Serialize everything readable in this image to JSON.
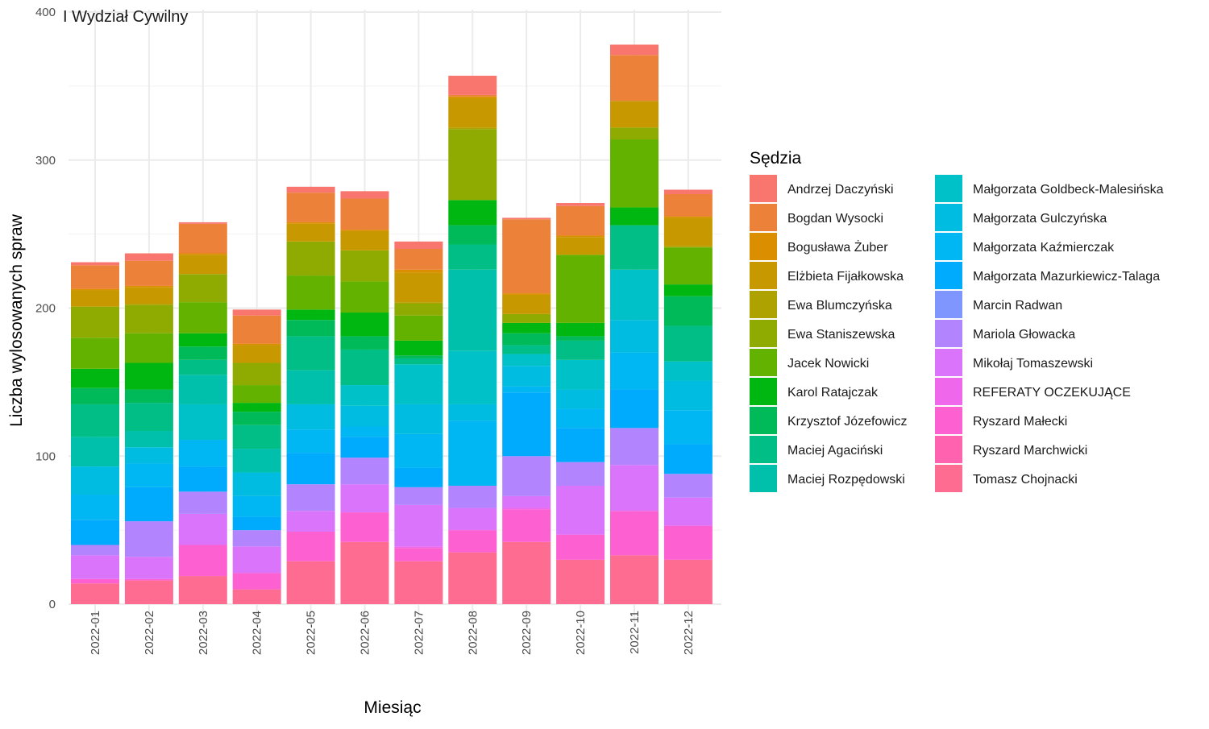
{
  "chart_data": {
    "type": "bar",
    "stacked": true,
    "title": "I Wydział Cywilny",
    "xlabel": "Miesiąc",
    "ylabel": "Liczba wylosowanych spraw",
    "ylim": [
      0,
      400
    ],
    "y_ticks": [
      0,
      100,
      200,
      300,
      400
    ],
    "grid": true,
    "legend_title": "Sędzia",
    "legend_position": "right",
    "categories": [
      "2022-01",
      "2022-02",
      "2022-03",
      "2022-04",
      "2022-05",
      "2022-06",
      "2022-07",
      "2022-08",
      "2022-09",
      "2022-10",
      "2022-11",
      "2022-12"
    ],
    "series": [
      {
        "name": "Andrzej Daczyński",
        "color": "#F8766D",
        "values": [
          2,
          5,
          1,
          4,
          4,
          5,
          5,
          13,
          1,
          2,
          7,
          3
        ]
      },
      {
        "name": "Bogdan Wysocki",
        "color": "#EC8239",
        "values": [
          16,
          17,
          20,
          19,
          20,
          21,
          14,
          1,
          50,
          20,
          31,
          15
        ]
      },
      {
        "name": "Bogusława Żuber",
        "color": "#DB8E00",
        "values": [
          1,
          1,
          1,
          1,
          1,
          1,
          2,
          1,
          1,
          1,
          0,
          1
        ]
      },
      {
        "name": "Elżbieta Fijałkowska",
        "color": "#C79800",
        "values": [
          11,
          11,
          13,
          12,
          12,
          13,
          20,
          20,
          13,
          12,
          18,
          19
        ]
      },
      {
        "name": "Ewa Blumczyńska",
        "color": "#AEA200",
        "values": [
          0,
          1,
          0,
          0,
          0,
          0,
          1,
          1,
          0,
          0,
          0,
          1
        ]
      },
      {
        "name": "Ewa Staniszewska",
        "color": "#8FAA00",
        "values": [
          21,
          19,
          19,
          15,
          23,
          21,
          8,
          48,
          6,
          0,
          8,
          0
        ]
      },
      {
        "name": "Jacek Nowicki",
        "color": "#64B200",
        "values": [
          21,
          20,
          21,
          12,
          23,
          21,
          17,
          0,
          0,
          46,
          46,
          25
        ]
      },
      {
        "name": "Karol Ratajczak",
        "color": "#00B712",
        "values": [
          13,
          18,
          9,
          6,
          7,
          16,
          10,
          17,
          7,
          9,
          12,
          8
        ]
      },
      {
        "name": "Krzysztof Józefowicz",
        "color": "#00BA5A",
        "values": [
          11,
          9,
          9,
          9,
          11,
          9,
          2,
          13,
          8,
          3,
          0,
          20
        ]
      },
      {
        "name": "Maciej Agaciński",
        "color": "#00BE86",
        "values": [
          22,
          19,
          10,
          16,
          23,
          24,
          4,
          17,
          6,
          13,
          30,
          24
        ]
      },
      {
        "name": "Maciej Rozpędowski",
        "color": "#00C0AB",
        "values": [
          20,
          11,
          20,
          16,
          23,
          0,
          0,
          55,
          0,
          0,
          0,
          0
        ]
      },
      {
        "name": "Małgorzata Goldbeck-Malesińska",
        "color": "#00C0C8",
        "values": [
          0,
          0,
          24,
          0,
          0,
          14,
          27,
          36,
          8,
          20,
          34,
          13
        ]
      },
      {
        "name": "Małgorzata Gulczyńska",
        "color": "#00BCE0",
        "values": [
          19,
          11,
          0,
          16,
          17,
          14,
          20,
          11,
          14,
          13,
          22,
          20
        ]
      },
      {
        "name": "Małgorzata Kaźmierczak",
        "color": "#00B6F3",
        "values": [
          17,
          16,
          18,
          14,
          16,
          7,
          23,
          44,
          4,
          13,
          25,
          23
        ]
      },
      {
        "name": "Małgorzata Mazurkiewicz-Talaga",
        "color": "#00ABFD",
        "values": [
          17,
          23,
          17,
          9,
          21,
          14,
          13,
          0,
          43,
          23,
          26,
          20
        ]
      },
      {
        "name": "Marcin Radwan",
        "color": "#7F96FF",
        "values": [
          0,
          0,
          0,
          0,
          0,
          0,
          0,
          0,
          0,
          0,
          0,
          0
        ]
      },
      {
        "name": "Mariola Głowacka",
        "color": "#B285FF",
        "values": [
          7,
          24,
          15,
          11,
          18,
          18,
          12,
          15,
          27,
          16,
          25,
          16
        ]
      },
      {
        "name": "Mikołaj Tomaszewski",
        "color": "#D974FB",
        "values": [
          16,
          15,
          21,
          18,
          14,
          19,
          28,
          15,
          8,
          33,
          31,
          19
        ]
      },
      {
        "name": "REFERATY OCZEKUJĄCE",
        "color": "#EF67EB",
        "values": [
          0,
          0,
          0,
          0,
          0,
          0,
          1,
          0,
          1,
          0,
          0,
          0
        ]
      },
      {
        "name": "Ryszard Małecki",
        "color": "#FD61D1",
        "values": [
          3,
          1,
          21,
          11,
          20,
          20,
          9,
          15,
          22,
          17,
          30,
          23
        ]
      },
      {
        "name": "Ryszard Marchwicki",
        "color": "#FF62AF",
        "values": [
          0,
          0,
          0,
          0,
          0,
          0,
          0,
          0,
          0,
          0,
          0,
          0
        ]
      },
      {
        "name": "Tomasz Chojnacki",
        "color": "#FF6C91",
        "values": [
          14,
          16,
          19,
          10,
          29,
          42,
          29,
          35,
          42,
          30,
          33,
          30
        ]
      }
    ]
  }
}
